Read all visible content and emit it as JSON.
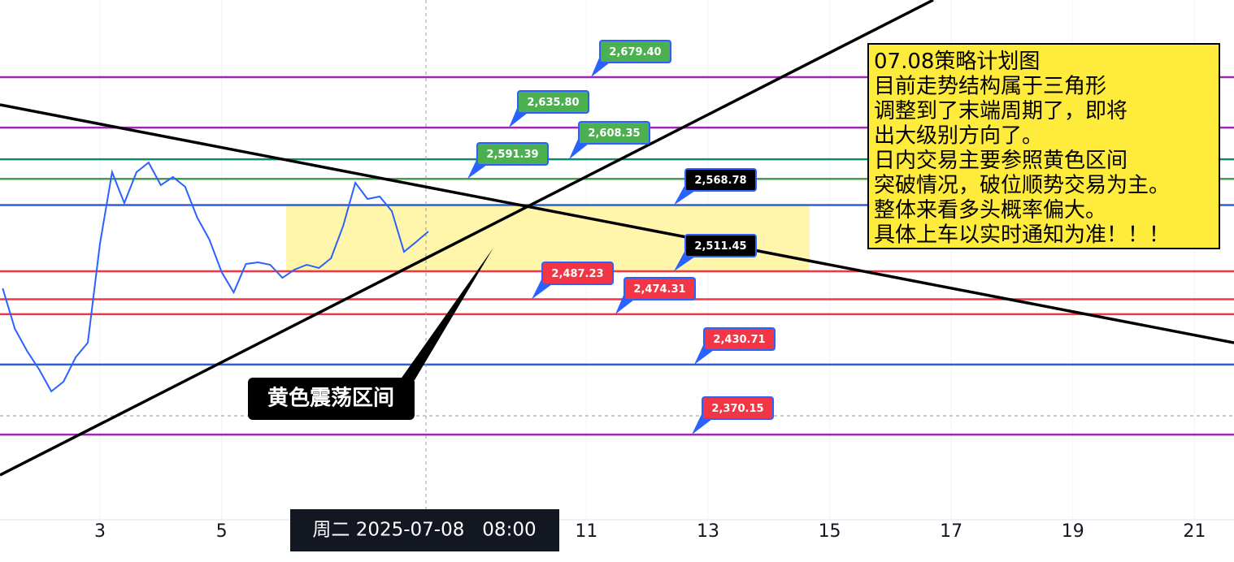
{
  "chart_data": {
    "type": "line",
    "x": [
      1.4,
      1.6,
      1.8,
      2.0,
      2.2,
      2.4,
      2.6,
      2.8,
      3.0,
      3.2,
      3.4,
      3.6,
      3.8,
      4.0,
      4.2,
      4.4,
      4.6,
      4.8,
      5.0,
      5.2,
      5.4,
      5.6,
      5.8,
      6.0,
      6.2,
      6.4,
      6.6,
      6.8,
      7.0,
      7.2,
      7.4,
      7.6,
      7.8,
      8.0,
      8.2,
      8.4
    ],
    "series": [
      {
        "color": "#2962ff",
        "values": [
          2496.7,
          2461.6,
          2442.6,
          2426.4,
          2407.5,
          2415.9,
          2437.0,
          2449.6,
          2535.4,
          2597.2,
          2570.5,
          2597.2,
          2605.6,
          2586.0,
          2593.0,
          2584.6,
          2557.8,
          2538.9,
          2510.8,
          2493.2,
          2517.8,
          2519.2,
          2517.1,
          2505.8,
          2512.9,
          2517.1,
          2514.3,
          2522.7,
          2550.8,
          2588.1,
          2574.0,
          2576.1,
          2563.5,
          2528.3,
          2536.8,
          2545.9
        ]
      }
    ],
    "xlim": [
      1.356,
      21.65
    ],
    "xticks": [
      3,
      5,
      11,
      13,
      15,
      17,
      19,
      21
    ],
    "ylim": [
      2296.4,
      2746.2
    ],
    "levels": [
      {
        "value": 2679.4,
        "label": "2,679.40",
        "color": "#9c27b0",
        "box": "#4caf50"
      },
      {
        "value": 2635.8,
        "label": "2,635.80",
        "color": "#9c27b0",
        "box": "#4caf50"
      },
      {
        "value": 2608.35,
        "label": "2,608.35",
        "color": "#0f8a6e",
        "box": "#4caf50"
      },
      {
        "value": 2591.39,
        "label": "2,591.39",
        "color": "#43a047",
        "box": "#4caf50"
      },
      {
        "value": 2568.78,
        "label": "2,568.78",
        "color": "#2f5fd8",
        "box": "#000000"
      },
      {
        "value": 2511.45,
        "label": "2,511.45",
        "color": "#f23645",
        "box": "#000000"
      },
      {
        "value": 2487.23,
        "label": "2,487.23",
        "color": "#f23645",
        "box": "#f23645"
      },
      {
        "value": 2474.31,
        "label": "2,474.31",
        "color": "#f23645",
        "box": "#f23645"
      },
      {
        "value": 2430.71,
        "label": "2,430.71",
        "color": "#2f5fd8",
        "box": "#f23645"
      },
      {
        "value": 2370.15,
        "label": "2,370.15",
        "color": "#9c27b0",
        "box": "#f23645"
      }
    ],
    "crosshair_label": "周二 2025-07-08   08:00",
    "zone_label": "黄色震荡区间",
    "note_lines": [
      "07.08策略计划图",
      "目前走势结构属于三角形",
      "调整到了末端周期了，即将",
      "出大级别方向了。",
      "日内交易主要参照黄色区间",
      "突破情况，破位顺势交易为主。",
      "整体来看多头概率偏大。",
      "具体上车以实时通知为准！！！"
    ]
  }
}
